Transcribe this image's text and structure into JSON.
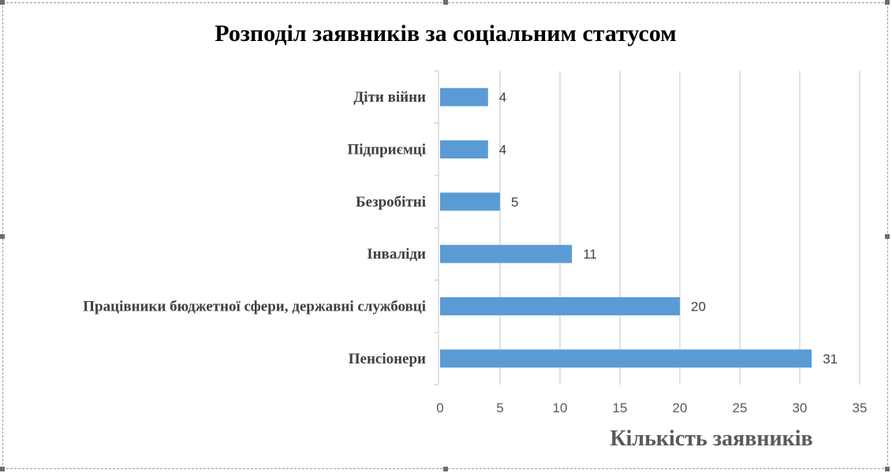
{
  "chart_data": {
    "type": "bar",
    "orientation": "horizontal",
    "title": "Розподіл заявників за соціальним статусом",
    "xlabel": "Кількість заявників",
    "ylabel": "",
    "categories": [
      "Діти війни",
      "Підприємці",
      "Безробітні",
      "Інваліди",
      "Працівники бюджетної сфери, державні службовці",
      "Пенсіонери"
    ],
    "values": [
      4,
      4,
      5,
      11,
      20,
      31
    ],
    "xlim": [
      0,
      35
    ],
    "xticks": [
      0,
      5,
      10,
      15,
      20,
      25,
      30,
      35
    ],
    "grid": "vertical",
    "legend": "none",
    "bar_color": "#5b9bd5",
    "grid_color": "#d9d9d9"
  }
}
